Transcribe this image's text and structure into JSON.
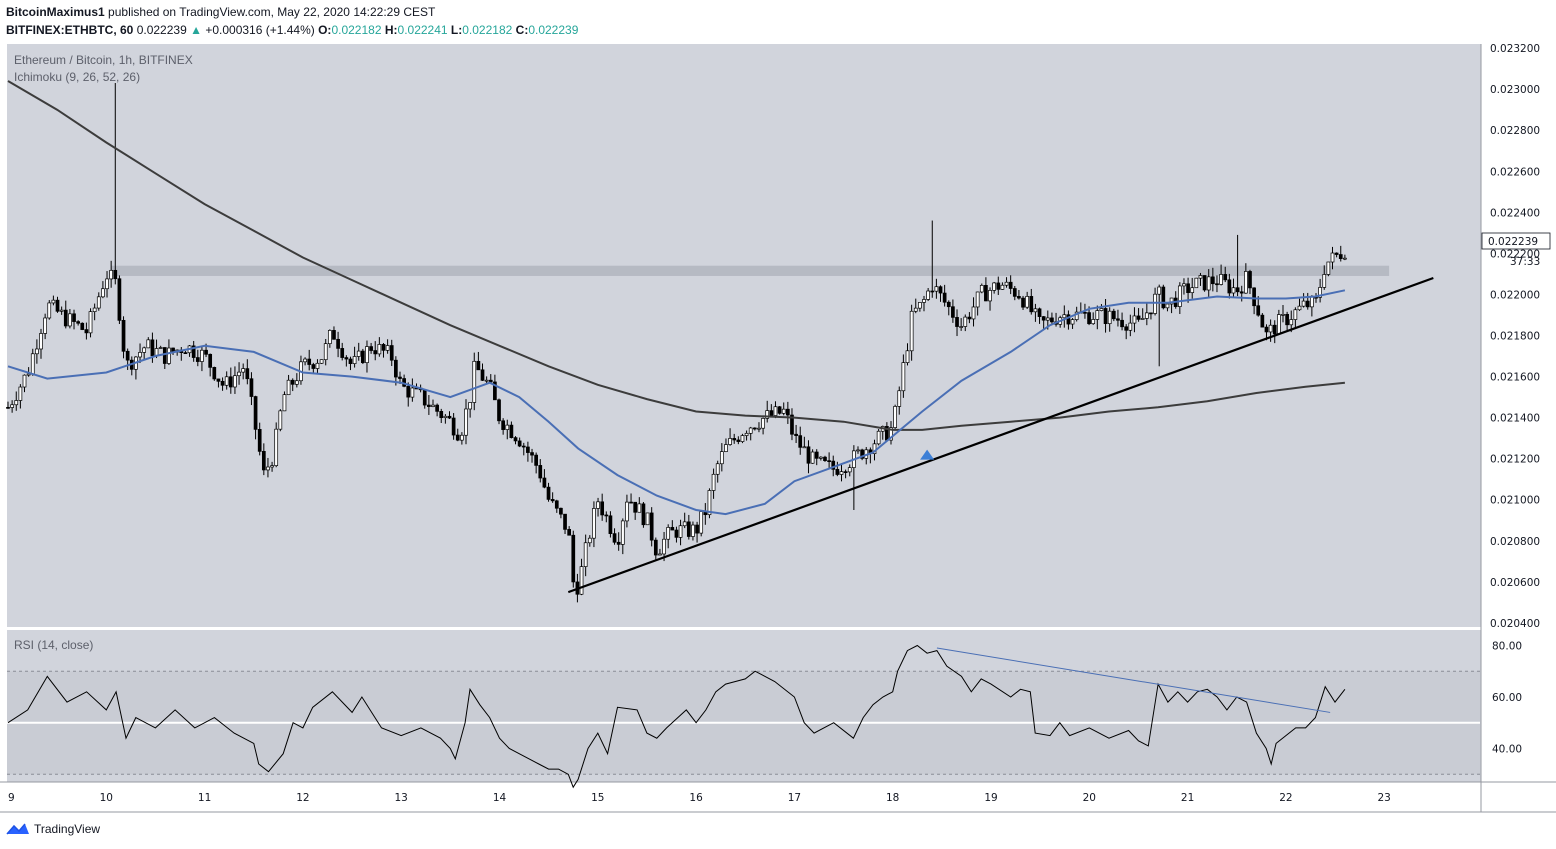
{
  "header": {
    "author": "BitcoinMaximus1",
    "published_text": "published on TradingView.com, May 22, 2020 14:22:29 CEST",
    "symbol": "BITFINEX:ETHBTC, 60",
    "last": "0.022239",
    "change": "+0.000316 (+1.44%)",
    "o_label": "O:",
    "o_value": "0.022182",
    "h_label": "H:",
    "h_value": "0.022241",
    "l_label": "L:",
    "l_value": "0.022182",
    "c_label": "C:",
    "c_value": "0.022239"
  },
  "legend": {
    "pair": "Ethereum / Bitcoin, 1h, BITFINEX",
    "indicator": "Ichimoku (9, 26, 52, 26)",
    "rsi": "RSI (14, close)"
  },
  "price_label": {
    "value": "0.022239",
    "countdown": "37:33"
  },
  "brand": {
    "name": "TradingView"
  },
  "colors": {
    "panel_bg": "#d1d4dc",
    "resistance_zone": "#b2b5be",
    "ma_short": "#4a6fb5",
    "ma_long": "#3c3c3c",
    "trendline": "#000000",
    "arrow": "#3d7fd6"
  },
  "chart_data": [
    {
      "type": "candlestick",
      "x_tick_labels": [
        "9",
        "10",
        "11",
        "12",
        "13",
        "14",
        "15",
        "16",
        "17",
        "18",
        "19",
        "20",
        "21",
        "22",
        "23"
      ],
      "y_tick_labels": [
        "0.023200",
        "0.023000",
        "0.022800",
        "0.022600",
        "0.022400",
        "0.022200",
        "0.022000",
        "0.021800",
        "0.021600",
        "0.021400",
        "0.021200",
        "0.021000",
        "0.020800",
        "0.020600",
        "0.020400"
      ],
      "ylim": [
        0.02038,
        0.02322
      ],
      "resistance_zone": [
        0.02209,
        0.02214
      ],
      "ma_short_points": [
        [
          9,
          0.02165
        ],
        [
          9.4,
          0.02159
        ],
        [
          10,
          0.02162
        ],
        [
          10.5,
          0.0217
        ],
        [
          11,
          0.02175
        ],
        [
          11.5,
          0.02172
        ],
        [
          12,
          0.02162
        ],
        [
          12.5,
          0.0216
        ],
        [
          13,
          0.02157
        ],
        [
          13.5,
          0.0215
        ],
        [
          13.9,
          0.02157
        ],
        [
          14.2,
          0.0215
        ],
        [
          14.5,
          0.02138
        ],
        [
          14.8,
          0.02125
        ],
        [
          15.2,
          0.02112
        ],
        [
          15.6,
          0.02102
        ],
        [
          16,
          0.02095
        ],
        [
          16.3,
          0.02093
        ],
        [
          16.7,
          0.02098
        ],
        [
          17,
          0.02109
        ],
        [
          17.4,
          0.02116
        ],
        [
          17.8,
          0.02123
        ],
        [
          18,
          0.02131
        ],
        [
          18.3,
          0.02143
        ],
        [
          18.7,
          0.02158
        ],
        [
          19.2,
          0.02172
        ],
        [
          19.6,
          0.02185
        ],
        [
          20,
          0.02193
        ],
        [
          20.4,
          0.02196
        ],
        [
          20.8,
          0.02196
        ],
        [
          21.3,
          0.02199
        ],
        [
          21.7,
          0.02198
        ],
        [
          22,
          0.02198
        ],
        [
          22.3,
          0.02199
        ],
        [
          22.6,
          0.02202
        ]
      ],
      "ma_long_points": [
        [
          9,
          0.02304
        ],
        [
          9.5,
          0.0229
        ],
        [
          10,
          0.02274
        ],
        [
          10.5,
          0.02259
        ],
        [
          11,
          0.02244
        ],
        [
          11.5,
          0.02231
        ],
        [
          12,
          0.02218
        ],
        [
          12.5,
          0.02207
        ],
        [
          13,
          0.02196
        ],
        [
          13.5,
          0.02185
        ],
        [
          14,
          0.02175
        ],
        [
          14.5,
          0.02165
        ],
        [
          15,
          0.02156
        ],
        [
          15.5,
          0.02149
        ],
        [
          16,
          0.02143
        ],
        [
          16.5,
          0.02141
        ],
        [
          17,
          0.0214
        ],
        [
          17.5,
          0.02138
        ],
        [
          18,
          0.02134
        ],
        [
          18.3,
          0.02134
        ],
        [
          18.7,
          0.02136
        ],
        [
          19.2,
          0.02138
        ],
        [
          19.7,
          0.0214
        ],
        [
          20.2,
          0.02143
        ],
        [
          20.7,
          0.02145
        ],
        [
          21.2,
          0.02148
        ],
        [
          21.7,
          0.02152
        ],
        [
          22.2,
          0.02155
        ],
        [
          22.6,
          0.02157
        ]
      ],
      "trendline": [
        [
          14.7,
          0.02055
        ],
        [
          23.5,
          0.02208
        ]
      ],
      "marker_up": [
        18.35,
        0.02122
      ],
      "close_path": [
        [
          9,
          0.02145
        ],
        [
          9.2,
          0.02162
        ],
        [
          9.4,
          0.02195
        ],
        [
          9.6,
          0.02188
        ],
        [
          9.8,
          0.02182
        ],
        [
          10,
          0.0221
        ],
        [
          10.1,
          0.02205
        ],
        [
          10.2,
          0.02165
        ],
        [
          10.4,
          0.02175
        ],
        [
          10.6,
          0.0217
        ],
        [
          10.8,
          0.02175
        ],
        [
          11,
          0.0217
        ],
        [
          11.2,
          0.02155
        ],
        [
          11.4,
          0.02165
        ],
        [
          11.5,
          0.0214
        ],
        [
          11.6,
          0.02112
        ],
        [
          11.7,
          0.02122
        ],
        [
          11.8,
          0.0215
        ],
        [
          12,
          0.02165
        ],
        [
          12.2,
          0.0217
        ],
        [
          12.3,
          0.02182
        ],
        [
          12.5,
          0.02165
        ],
        [
          12.7,
          0.02175
        ],
        [
          12.9,
          0.0217
        ],
        [
          13,
          0.02155
        ],
        [
          13.2,
          0.0215
        ],
        [
          13.4,
          0.02142
        ],
        [
          13.5,
          0.02138
        ],
        [
          13.6,
          0.02132
        ],
        [
          13.7,
          0.0215
        ],
        [
          13.75,
          0.02165
        ],
        [
          13.9,
          0.02155
        ],
        [
          14,
          0.0214
        ],
        [
          14.2,
          0.0213
        ],
        [
          14.4,
          0.02115
        ],
        [
          14.5,
          0.021
        ],
        [
          14.7,
          0.02085
        ],
        [
          14.75,
          0.0206
        ],
        [
          14.8,
          0.02058
        ],
        [
          14.9,
          0.0208
        ],
        [
          15,
          0.021
        ],
        [
          15.1,
          0.0209
        ],
        [
          15.2,
          0.0208
        ],
        [
          15.3,
          0.02102
        ],
        [
          15.5,
          0.0209
        ],
        [
          15.6,
          0.02075
        ],
        [
          15.7,
          0.02082
        ],
        [
          15.8,
          0.02085
        ],
        [
          16,
          0.02085
        ],
        [
          16.1,
          0.02095
        ],
        [
          16.2,
          0.02115
        ],
        [
          16.3,
          0.02125
        ],
        [
          16.5,
          0.02135
        ],
        [
          16.7,
          0.0214
        ],
        [
          16.9,
          0.02143
        ],
        [
          17,
          0.0213
        ],
        [
          17.2,
          0.02118
        ],
        [
          17.4,
          0.02115
        ],
        [
          17.6,
          0.0212
        ],
        [
          17.8,
          0.02128
        ],
        [
          18,
          0.02135
        ],
        [
          18.1,
          0.02162
        ],
        [
          18.2,
          0.0219
        ],
        [
          18.3,
          0.02195
        ],
        [
          18.4,
          0.02205
        ],
        [
          18.5,
          0.02198
        ],
        [
          18.7,
          0.02185
        ],
        [
          18.9,
          0.022
        ],
        [
          19.1,
          0.02205
        ],
        [
          19.3,
          0.022
        ],
        [
          19.5,
          0.02185
        ],
        [
          19.7,
          0.0219
        ],
        [
          19.9,
          0.0219
        ],
        [
          20.1,
          0.0219
        ],
        [
          20.3,
          0.02188
        ],
        [
          20.5,
          0.02185
        ],
        [
          20.7,
          0.022
        ],
        [
          20.8,
          0.02195
        ],
        [
          21,
          0.02203
        ],
        [
          21.1,
          0.02205
        ],
        [
          21.3,
          0.02207
        ],
        [
          21.5,
          0.02202
        ],
        [
          21.6,
          0.02208
        ],
        [
          21.7,
          0.02195
        ],
        [
          21.8,
          0.0218
        ],
        [
          21.9,
          0.02185
        ],
        [
          22,
          0.02188
        ],
        [
          22.2,
          0.02195
        ],
        [
          22.3,
          0.02195
        ],
        [
          22.4,
          0.02215
        ],
        [
          22.5,
          0.02218
        ],
        [
          22.6,
          0.02222
        ]
      ]
    },
    {
      "type": "line",
      "title": "RSI (14, close)",
      "y_tick_labels": [
        "80.00",
        "60.00",
        "40.00"
      ],
      "ylim": [
        27,
        86
      ],
      "bands": [
        30,
        50,
        70
      ],
      "divergence_line": [
        [
          18.45,
          79
        ],
        [
          22.45,
          54
        ]
      ],
      "rsi_points": [
        [
          9,
          50
        ],
        [
          9.2,
          55
        ],
        [
          9.4,
          68
        ],
        [
          9.6,
          58
        ],
        [
          9.8,
          62
        ],
        [
          10,
          55
        ],
        [
          10.1,
          62
        ],
        [
          10.2,
          44
        ],
        [
          10.3,
          52
        ],
        [
          10.5,
          48
        ],
        [
          10.7,
          55
        ],
        [
          10.9,
          48
        ],
        [
          11.1,
          52
        ],
        [
          11.3,
          46
        ],
        [
          11.5,
          42
        ],
        [
          11.55,
          34
        ],
        [
          11.65,
          31
        ],
        [
          11.8,
          38
        ],
        [
          11.9,
          50
        ],
        [
          12,
          48
        ],
        [
          12.1,
          56
        ],
        [
          12.3,
          62
        ],
        [
          12.5,
          54
        ],
        [
          12.6,
          60
        ],
        [
          12.8,
          48
        ],
        [
          13,
          45
        ],
        [
          13.2,
          48
        ],
        [
          13.4,
          44
        ],
        [
          13.5,
          40
        ],
        [
          13.55,
          36
        ],
        [
          13.65,
          50
        ],
        [
          13.7,
          63
        ],
        [
          13.8,
          57
        ],
        [
          13.9,
          52
        ],
        [
          14,
          44
        ],
        [
          14.1,
          40
        ],
        [
          14.2,
          38
        ],
        [
          14.4,
          34
        ],
        [
          14.5,
          32
        ],
        [
          14.6,
          32
        ],
        [
          14.7,
          30
        ],
        [
          14.75,
          25
        ],
        [
          14.8,
          28
        ],
        [
          14.9,
          40
        ],
        [
          15,
          46
        ],
        [
          15.1,
          38
        ],
        [
          15.2,
          56
        ],
        [
          15.4,
          55
        ],
        [
          15.5,
          46
        ],
        [
          15.6,
          44
        ],
        [
          15.7,
          48
        ],
        [
          15.9,
          55
        ],
        [
          16,
          50
        ],
        [
          16.1,
          55
        ],
        [
          16.2,
          62
        ],
        [
          16.3,
          65
        ],
        [
          16.5,
          67
        ],
        [
          16.6,
          70
        ],
        [
          16.8,
          66
        ],
        [
          17,
          60
        ],
        [
          17.1,
          50
        ],
        [
          17.2,
          46
        ],
        [
          17.4,
          50
        ],
        [
          17.6,
          44
        ],
        [
          17.7,
          52
        ],
        [
          17.8,
          57
        ],
        [
          17.9,
          60
        ],
        [
          18,
          62
        ],
        [
          18.05,
          70
        ],
        [
          18.15,
          78
        ],
        [
          18.25,
          80
        ],
        [
          18.35,
          77
        ],
        [
          18.45,
          78
        ],
        [
          18.55,
          72
        ],
        [
          18.7,
          68
        ],
        [
          18.8,
          62
        ],
        [
          18.9,
          67
        ],
        [
          19,
          65
        ],
        [
          19.2,
          60
        ],
        [
          19.3,
          63
        ],
        [
          19.4,
          62
        ],
        [
          19.45,
          46
        ],
        [
          19.6,
          45
        ],
        [
          19.7,
          50
        ],
        [
          19.8,
          45
        ],
        [
          20,
          48
        ],
        [
          20.2,
          44
        ],
        [
          20.4,
          47
        ],
        [
          20.5,
          43
        ],
        [
          20.6,
          41
        ],
        [
          20.7,
          65
        ],
        [
          20.8,
          58
        ],
        [
          20.9,
          62
        ],
        [
          21,
          58
        ],
        [
          21.1,
          62
        ],
        [
          21.2,
          63
        ],
        [
          21.3,
          60
        ],
        [
          21.4,
          55
        ],
        [
          21.5,
          60
        ],
        [
          21.6,
          58
        ],
        [
          21.7,
          46
        ],
        [
          21.8,
          40
        ],
        [
          21.85,
          34
        ],
        [
          21.9,
          42
        ],
        [
          22,
          45
        ],
        [
          22.1,
          48
        ],
        [
          22.2,
          48
        ],
        [
          22.3,
          52
        ],
        [
          22.4,
          64
        ],
        [
          22.5,
          58
        ],
        [
          22.6,
          63
        ]
      ]
    }
  ]
}
